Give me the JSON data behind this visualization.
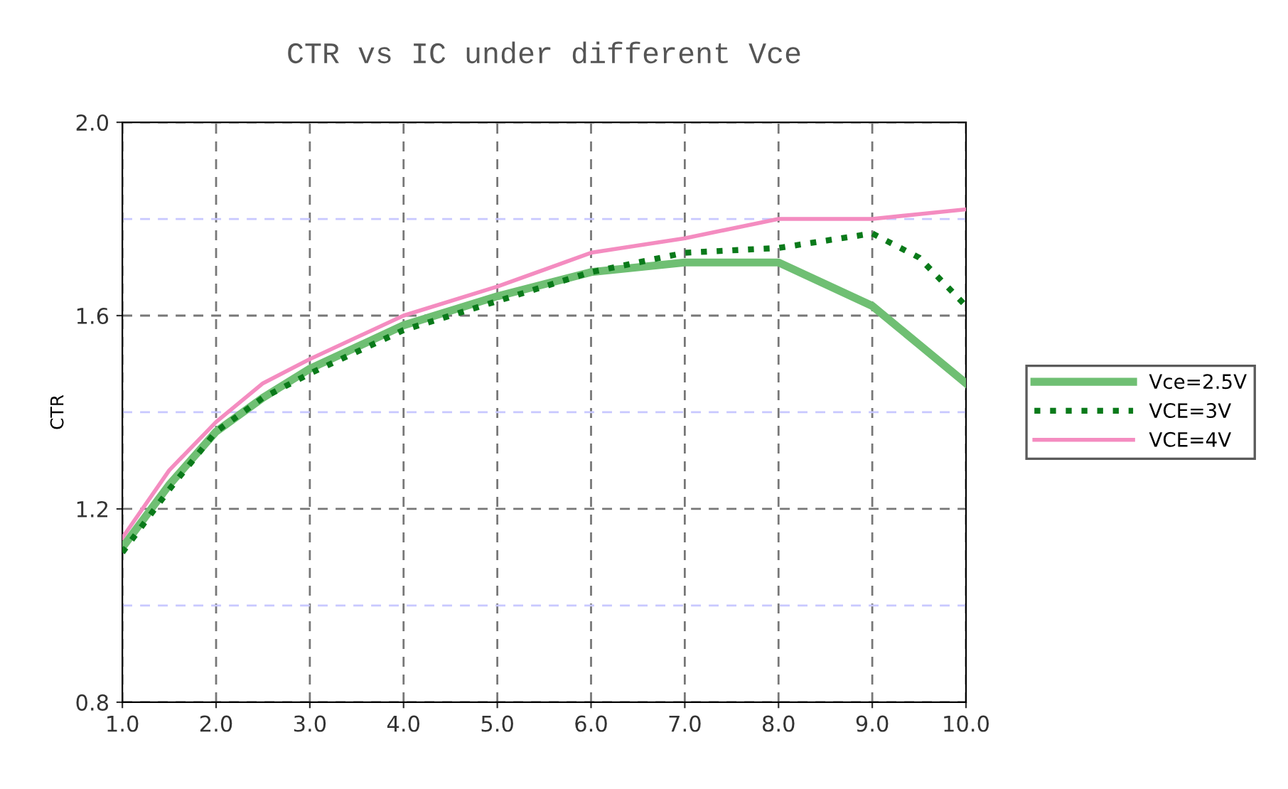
{
  "chart_data": {
    "type": "line",
    "title": "CTR vs IC under different Vce",
    "ylabel": "CTR",
    "x": [
      1.0,
      1.5,
      2.0,
      2.5,
      3.0,
      4.0,
      5.0,
      6.0,
      7.0,
      8.0,
      9.0,
      9.5,
      10.0
    ],
    "series": [
      {
        "name": "Vce=2.5V",
        "color": "#6fbf73",
        "line_style": "solid",
        "values": [
          1.12,
          1.25,
          1.36,
          1.43,
          1.49,
          1.58,
          1.64,
          1.69,
          1.71,
          1.71,
          1.62,
          1.54,
          1.46
        ]
      },
      {
        "name": "VCE=3V",
        "color": "#0a7a1a",
        "line_style": "dotted",
        "values": [
          1.11,
          1.24,
          1.36,
          1.43,
          1.48,
          1.57,
          1.63,
          1.69,
          1.73,
          1.74,
          1.77,
          1.72,
          1.62
        ]
      },
      {
        "name": "VCE=4V",
        "color": "#f48cc0",
        "line_style": "solid",
        "values": [
          1.14,
          1.28,
          1.38,
          1.46,
          1.51,
          1.6,
          1.66,
          1.73,
          1.76,
          1.8,
          1.8,
          1.81,
          1.82
        ]
      }
    ],
    "xlim": [
      1.0,
      10.0
    ],
    "xticks": [
      {
        "value": 1.0,
        "label": "1.0"
      },
      {
        "value": 2.0,
        "label": "2.0"
      },
      {
        "value": 3.0,
        "label": "3.0"
      },
      {
        "value": 4.0,
        "label": "4.0"
      },
      {
        "value": 5.0,
        "label": "5.0"
      },
      {
        "value": 6.0,
        "label": "6.0"
      },
      {
        "value": 7.0,
        "label": "7.0"
      },
      {
        "value": 8.0,
        "label": "8.0"
      },
      {
        "value": 9.0,
        "label": "9.0"
      },
      {
        "value": 10.0,
        "label": "10.0"
      }
    ],
    "ylim": [
      0.8,
      2.0
    ],
    "yticks": [
      0.8,
      {
        "value": 1.0,
        "label": null
      },
      1.2,
      {
        "value": 1.4,
        "label": null
      },
      1.6,
      {
        "value": 1.8,
        "label": null
      },
      {
        "value": 2.0,
        "label": "2.0"
      }
    ],
    "grid": true,
    "legend": "right",
    "marker": "none"
  }
}
